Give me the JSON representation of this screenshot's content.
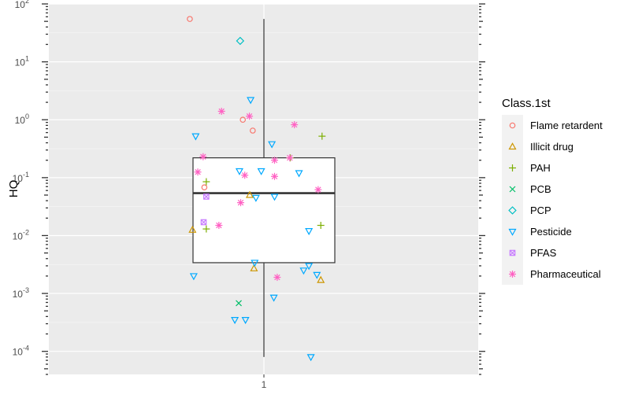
{
  "chart_data": {
    "type": "scatter",
    "subtype": "boxplot-with-jittered-points",
    "ylabel": "HQ",
    "xlabel": "",
    "x_categories": [
      "1"
    ],
    "yscale": "log10",
    "ylim": [
      4e-05,
      100
    ],
    "y_ticks": [
      {
        "value": 0.0001,
        "base": "10",
        "exp": "-4"
      },
      {
        "value": 0.001,
        "base": "10",
        "exp": "-3"
      },
      {
        "value": 0.01,
        "base": "10",
        "exp": "-2"
      },
      {
        "value": 0.1,
        "base": "10",
        "exp": "-1"
      },
      {
        "value": 1,
        "base": "10",
        "exp": "0"
      },
      {
        "value": 10,
        "base": "10",
        "exp": "1"
      },
      {
        "value": 100,
        "base": "10",
        "exp": "2"
      }
    ],
    "grid": true,
    "legend_position": "right",
    "legend_title": "Class.1st",
    "box": {
      "category": "1",
      "whisker_low": 8e-05,
      "q1": 0.0034,
      "median": 0.054,
      "q3": 0.22,
      "whisker_high": 55
    },
    "series": [
      {
        "name": "Flame retardent",
        "color": "#F8766D",
        "shape": "circle",
        "points": [
          {
            "x": -0.418,
            "y": 55
          },
          {
            "x": -0.119,
            "y": 1.0
          },
          {
            "x": -0.063,
            "y": 0.65
          },
          {
            "x": -0.336,
            "y": 0.068
          }
        ]
      },
      {
        "name": "Illicit drug",
        "color": "#CD9600",
        "shape": "triangle",
        "points": [
          {
            "x": -0.08,
            "y": 0.05
          },
          {
            "x": -0.403,
            "y": 0.0125
          },
          {
            "x": -0.056,
            "y": 0.0027
          },
          {
            "x": 0.321,
            "y": 0.0017
          }
        ]
      },
      {
        "name": "PAH",
        "color": "#7CAE00",
        "shape": "plus",
        "points": [
          {
            "x": 0.328,
            "y": 0.52
          },
          {
            "x": 0.149,
            "y": 0.22
          },
          {
            "x": -0.325,
            "y": 0.013
          },
          {
            "x": 0.321,
            "y": 0.015
          },
          {
            "x": -0.325,
            "y": 0.085
          }
        ]
      },
      {
        "name": "PCB",
        "color": "#00BE67",
        "shape": "cross",
        "points": [
          {
            "x": -0.142,
            "y": 0.00068
          }
        ]
      },
      {
        "name": "PCP",
        "color": "#00BFC4",
        "shape": "diamond",
        "points": [
          {
            "x": -0.134,
            "y": 23
          }
        ]
      },
      {
        "name": "Pesticide",
        "color": "#00A9FF",
        "shape": "triangle-down",
        "points": [
          {
            "x": -0.075,
            "y": 2.2
          },
          {
            "x": -0.385,
            "y": 0.52
          },
          {
            "x": 0.045,
            "y": 0.38
          },
          {
            "x": -0.138,
            "y": 0.13
          },
          {
            "x": -0.015,
            "y": 0.13
          },
          {
            "x": 0.198,
            "y": 0.12
          },
          {
            "x": -0.045,
            "y": 0.045
          },
          {
            "x": 0.06,
            "y": 0.047
          },
          {
            "x": 0.254,
            "y": 0.012
          },
          {
            "x": -0.052,
            "y": 0.0034
          },
          {
            "x": -0.396,
            "y": 0.002
          },
          {
            "x": 0.224,
            "y": 0.0025
          },
          {
            "x": 0.254,
            "y": 0.003
          },
          {
            "x": 0.299,
            "y": 0.0021
          },
          {
            "x": 0.056,
            "y": 0.00085
          },
          {
            "x": -0.164,
            "y": 0.00035
          },
          {
            "x": -0.104,
            "y": 0.00035
          },
          {
            "x": 0.265,
            "y": 8e-05
          }
        ]
      },
      {
        "name": "PFAS",
        "color": "#C77CFF",
        "shape": "square-x",
        "points": [
          {
            "x": -0.34,
            "y": 0.017
          },
          {
            "x": -0.325,
            "y": 0.047
          }
        ]
      },
      {
        "name": "Pharmaceutical",
        "color": "#FF61C3",
        "shape": "asterisk",
        "points": [
          {
            "x": -0.239,
            "y": 1.4
          },
          {
            "x": -0.082,
            "y": 1.15
          },
          {
            "x": 0.172,
            "y": 0.82
          },
          {
            "x": -0.343,
            "y": 0.23
          },
          {
            "x": 0.06,
            "y": 0.2
          },
          {
            "x": 0.146,
            "y": 0.22
          },
          {
            "x": -0.373,
            "y": 0.125
          },
          {
            "x": -0.108,
            "y": 0.11
          },
          {
            "x": 0.06,
            "y": 0.105
          },
          {
            "x": 0.306,
            "y": 0.062
          },
          {
            "x": -0.131,
            "y": 0.037
          },
          {
            "x": -0.254,
            "y": 0.015
          },
          {
            "x": 0.075,
            "y": 0.0019
          }
        ]
      }
    ]
  }
}
